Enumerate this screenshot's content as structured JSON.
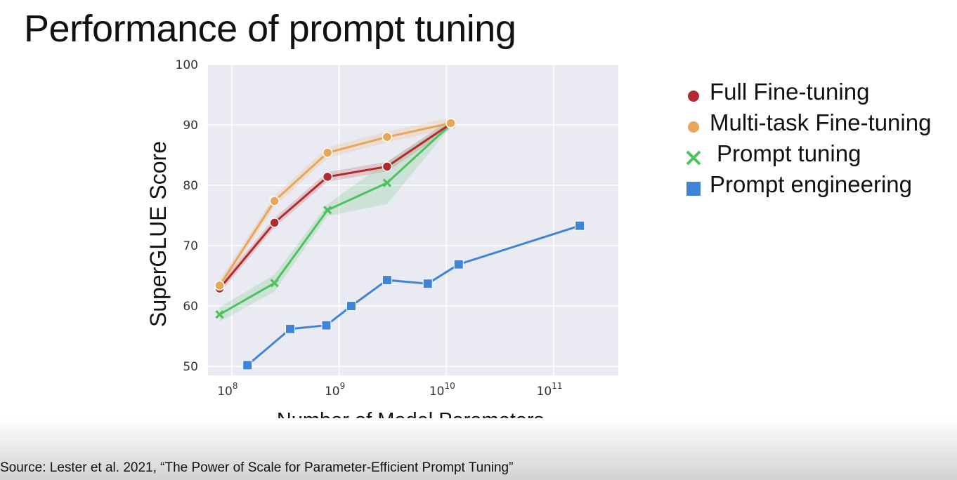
{
  "slide": {
    "title": "Performance of prompt tuning",
    "source": "Source:  Lester et al. 2021, “The Power of Scale for Parameter-Efficient Prompt Tuning”"
  },
  "chart_data": {
    "type": "line",
    "title": "",
    "xlabel": "Number of Model Parameters",
    "ylabel": "SuperGLUE Score",
    "xscale": "log",
    "xlim": [
      60000000,
      400000000000
    ],
    "ylim": [
      48.5,
      100
    ],
    "x_ticks": [
      {
        "value": 100000000,
        "base": "10",
        "exp": "8"
      },
      {
        "value": 1000000000,
        "base": "10",
        "exp": "9"
      },
      {
        "value": 10000000000,
        "base": "10",
        "exp": "10"
      },
      {
        "value": 100000000000,
        "base": "10",
        "exp": "11"
      }
    ],
    "y_ticks": [
      50,
      60,
      70,
      80,
      90,
      100
    ],
    "grid": true,
    "legend_position": "right",
    "series": [
      {
        "name": "Full Fine-tuning",
        "color": "#b22a2e",
        "marker": "circle",
        "x": [
          77000000,
          250000000,
          780000000,
          2800000000,
          11000000000
        ],
        "y": [
          62.9,
          73.8,
          81.4,
          83.1,
          90.2
        ]
      },
      {
        "name": "Multi-task Fine-tuning",
        "color": "#e8a65a",
        "marker": "circle",
        "x": [
          77000000,
          250000000,
          780000000,
          2800000000,
          11000000000
        ],
        "y": [
          63.4,
          77.4,
          85.4,
          88.0,
          90.3
        ]
      },
      {
        "name": "Prompt tuning",
        "color": "#4cc25c",
        "marker": "x",
        "x": [
          77000000,
          250000000,
          780000000,
          2800000000,
          11000000000
        ],
        "y": [
          58.6,
          63.8,
          75.9,
          80.4,
          90.1
        ]
      },
      {
        "name": "Prompt engineering",
        "color": "#3f84d6",
        "marker": "square",
        "x": [
          140000000,
          350000000,
          760000000,
          1300000000,
          2800000000,
          6700000000,
          13000000000,
          175000000000
        ],
        "y": [
          50.2,
          56.2,
          56.8,
          60.0,
          64.3,
          63.7,
          66.9,
          73.3
        ]
      }
    ]
  }
}
